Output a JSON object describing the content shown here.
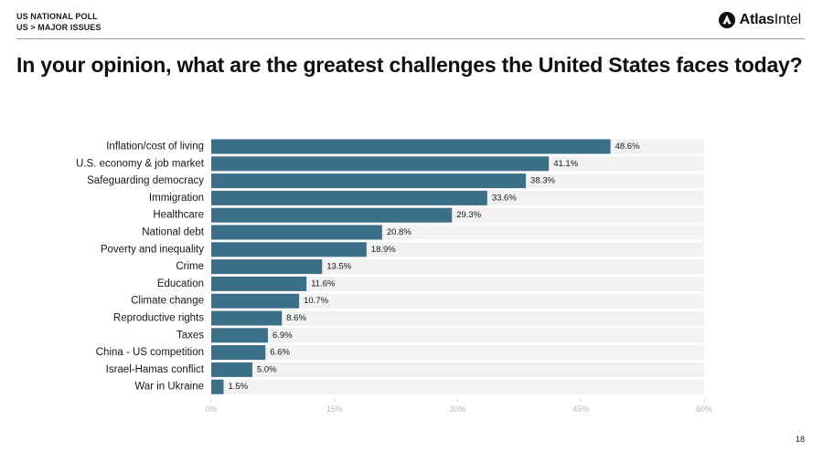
{
  "header": {
    "line1": "US NATIONAL POLL",
    "line2": "US > MAJOR ISSUES"
  },
  "logo": {
    "brand_bold": "Atlas",
    "brand_light": "Intel",
    "icon": "atlasintel-logo-icon"
  },
  "title": "In your opinion, what are the greatest challenges the United States faces today?",
  "page_number": "18",
  "colors": {
    "bar": "#3c6f89",
    "track": "#f2f2f2",
    "tick_text": "#b5b5b5"
  },
  "chart_data": {
    "type": "bar",
    "orientation": "horizontal",
    "categories": [
      "Inflation/cost of living",
      "U.S. economy & job market",
      "Safeguarding democracy",
      "Immigration",
      "Healthcare",
      "National debt",
      "Poverty and inequality",
      "Crime",
      "Education",
      "Climate change",
      "Reproductive rights",
      "Taxes",
      "China - US competition",
      "Israel-Hamas conflict",
      "War in Ukraine"
    ],
    "values": [
      48.6,
      41.1,
      38.3,
      33.6,
      29.3,
      20.8,
      18.9,
      13.5,
      11.6,
      10.7,
      8.6,
      6.9,
      6.6,
      5.0,
      1.5
    ],
    "value_labels": [
      "48.6%",
      "41.1%",
      "38.3%",
      "33.6%",
      "29.3%",
      "20.8%",
      "18.9%",
      "13.5%",
      "11.6%",
      "10.7%",
      "8.6%",
      "6.9%",
      "6.6%",
      "5.0%",
      "1.5%"
    ],
    "xlim": [
      0,
      60
    ],
    "xticks": [
      0,
      15,
      30,
      45,
      60
    ],
    "xtick_labels": [
      "0%",
      "15%",
      "30%",
      "45%",
      "60%"
    ],
    "grid": false,
    "legend": "none"
  }
}
